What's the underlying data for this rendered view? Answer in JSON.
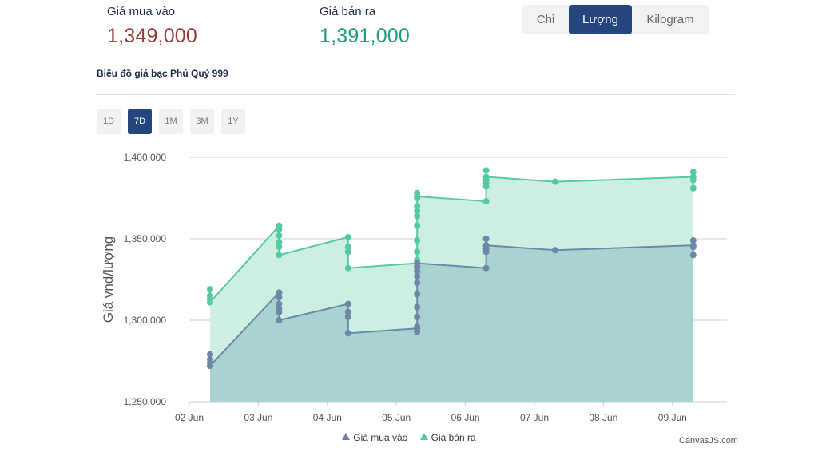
{
  "prices": {
    "buy_label": "Giá mua vào",
    "buy_value": "1,349,000",
    "sell_label": "Giá bán ra",
    "sell_value": "1,391,000"
  },
  "unit_toggle": {
    "options": [
      "Chỉ",
      "Lượng",
      "Kilogram"
    ],
    "selected": "Lượng"
  },
  "chart_title": "Biểu đồ giá bạc Phú Quý 999",
  "range_buttons": {
    "options": [
      "1D",
      "7D",
      "1M",
      "3M",
      "1Y"
    ],
    "selected": "7D"
  },
  "credit": "CanvasJS.com",
  "colors": {
    "buy_line": "#6d87a6",
    "buy_fill": "#a9d3d0",
    "sell_line": "#57c99e",
    "sell_fill": "#cdefe2",
    "accent": "#25457f"
  },
  "chart_data": {
    "type": "area",
    "ylabel": "Giá vnd/lượng",
    "xlabel": "",
    "ylim": [
      1250000,
      1400000
    ],
    "yticks": [
      1250000,
      1300000,
      1350000,
      1400000
    ],
    "ytick_labels": [
      "1,250,000",
      "1,300,000",
      "1,350,000",
      "1,400,000"
    ],
    "xticks": [
      "02 Jun",
      "03 Jun",
      "04 Jun",
      "05 Jun",
      "06 Jun",
      "07 Jun",
      "08 Jun",
      "09 Jun"
    ],
    "grid": true,
    "legend_position": "bottom-center",
    "series": [
      {
        "name": "Giá mua vào",
        "marker": "triangle",
        "points": [
          {
            "x": "02 Jun",
            "values": [
              1279000,
              1276000,
              1274000,
              1272000
            ]
          },
          {
            "x": "03 Jun",
            "values": [
              1317000,
              1314000,
              1310000,
              1307000,
              1305000,
              1300000
            ]
          },
          {
            "x": "04 Jun",
            "values": [
              1310000,
              1305000,
              1302000,
              1292000
            ]
          },
          {
            "x": "05 Jun",
            "values": [
              1295000,
              1293000,
              1296000,
              1302000,
              1308000,
              1316000,
              1323000,
              1327000,
              1330000,
              1333000,
              1335000
            ]
          },
          {
            "x": "06 Jun",
            "values": [
              1332000,
              1342000,
              1344000,
              1346000,
              1350000,
              1346000
            ]
          },
          {
            "x": "07 Jun",
            "values": [
              1343000
            ]
          },
          {
            "x": "09 Jun",
            "values": [
              1346000,
              1340000,
              1345000,
              1349000
            ]
          }
        ]
      },
      {
        "name": "Giá bán ra",
        "marker": "triangle",
        "points": [
          {
            "x": "02 Jun",
            "values": [
              1319000,
              1315000,
              1313000,
              1311000
            ]
          },
          {
            "x": "03 Jun",
            "values": [
              1358000,
              1356000,
              1352000,
              1348000,
              1345000,
              1340000
            ]
          },
          {
            "x": "04 Jun",
            "values": [
              1351000,
              1345000,
              1342000,
              1332000
            ]
          },
          {
            "x": "05 Jun",
            "values": [
              1335000,
              1332000,
              1337000,
              1342000,
              1349000,
              1358000,
              1364000,
              1367000,
              1370000,
              1375000,
              1378000,
              1376000
            ]
          },
          {
            "x": "06 Jun",
            "values": [
              1373000,
              1382000,
              1384000,
              1386000,
              1392000,
              1388000
            ]
          },
          {
            "x": "07 Jun",
            "values": [
              1385000
            ]
          },
          {
            "x": "09 Jun",
            "values": [
              1388000,
              1381000,
              1386000,
              1391000
            ]
          }
        ]
      }
    ]
  }
}
